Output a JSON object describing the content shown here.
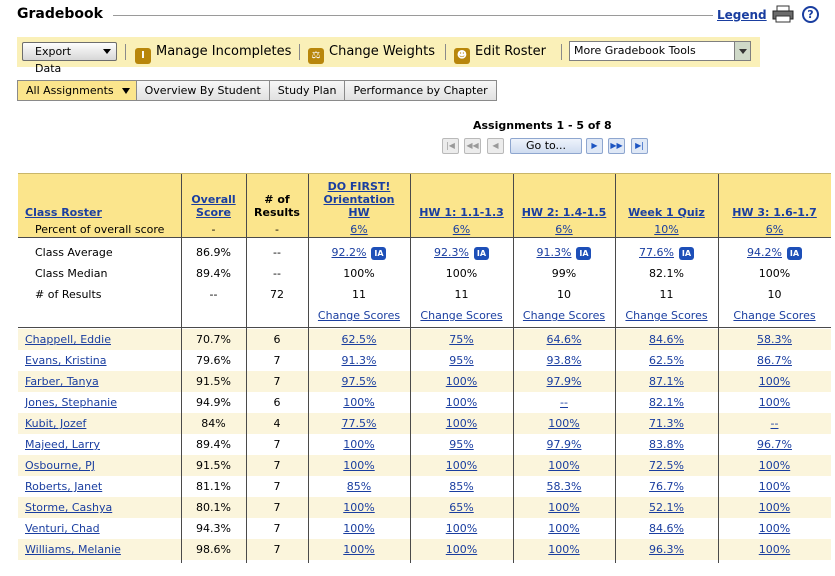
{
  "header": {
    "title": "Gradebook",
    "legend_label": "Legend",
    "help_label": "?"
  },
  "toolbar": {
    "export_label": "Export Data",
    "manage_incompletes": "Manage Incompletes",
    "change_weights": "Change Weights",
    "edit_roster": "Edit Roster",
    "more_tools": "More Gradebook Tools"
  },
  "tabs": [
    "All Assignments",
    "Overview By Student",
    "Study Plan",
    "Performance by Chapter"
  ],
  "pager": {
    "label": "Assignments 1 - 5 of 8",
    "goto_label": "Go to..."
  },
  "table": {
    "roster_header": "Class Roster",
    "percent_label": "Percent of overall score",
    "overall_header_1": "Overall",
    "overall_header_2": "Score",
    "results_header_1": "# of",
    "results_header_2": "Results",
    "dash": "-",
    "assignments": [
      {
        "name_lines": [
          "DO FIRST!",
          "Orientation",
          "HW"
        ],
        "weight": "6%"
      },
      {
        "name_lines": [
          "HW 1: 1.1-1.3"
        ],
        "weight": "6%"
      },
      {
        "name_lines": [
          "HW 2: 1.4-1.5"
        ],
        "weight": "6%"
      },
      {
        "name_lines": [
          "Week 1 Quiz"
        ],
        "weight": "10%"
      },
      {
        "name_lines": [
          "HW 3: 1.6-1.7"
        ],
        "weight": "6%"
      }
    ],
    "stats": [
      {
        "label": "Class Average",
        "overall": "86.9%",
        "results": "--",
        "values": [
          "92.2%",
          "92.3%",
          "91.3%",
          "77.6%",
          "94.2%"
        ],
        "ia": true,
        "link": true
      },
      {
        "label": "Class Median",
        "overall": "89.4%",
        "results": "--",
        "values": [
          "100%",
          "100%",
          "99%",
          "82.1%",
          "100%"
        ],
        "ia": false,
        "link": false
      },
      {
        "label": "# of Results",
        "overall": "--",
        "results": "72",
        "values": [
          "11",
          "11",
          "10",
          "11",
          "10"
        ],
        "ia": false,
        "link": false
      }
    ],
    "ia_label": "IA",
    "change_scores_label": "Change Scores",
    "students": [
      {
        "name": "Chappell, Eddie",
        "overall": "70.7%",
        "results": "6",
        "scores": [
          "62.5%",
          "75%",
          "64.6%",
          "84.6%",
          "58.3%"
        ]
      },
      {
        "name": "Evans, Kristina",
        "overall": "79.6%",
        "results": "7",
        "scores": [
          "91.3%",
          "95%",
          "93.8%",
          "62.5%",
          "86.7%"
        ]
      },
      {
        "name": "Farber, Tanya",
        "overall": "91.5%",
        "results": "7",
        "scores": [
          "97.5%",
          "100%",
          "97.9%",
          "87.1%",
          "100%"
        ]
      },
      {
        "name": "Jones, Stephanie",
        "overall": "94.9%",
        "results": "6",
        "scores": [
          "100%",
          "100%",
          "--",
          "82.1%",
          "100%"
        ]
      },
      {
        "name": "Kubit, Jozef",
        "overall": "84%",
        "results": "4",
        "scores": [
          "77.5%",
          "100%",
          "100%",
          "71.3%",
          "--"
        ]
      },
      {
        "name": "Majeed, Larry",
        "overall": "89.4%",
        "results": "7",
        "scores": [
          "100%",
          "95%",
          "97.9%",
          "83.8%",
          "96.7%"
        ]
      },
      {
        "name": "Osbourne, PJ",
        "overall": "91.5%",
        "results": "7",
        "scores": [
          "100%",
          "100%",
          "100%",
          "72.5%",
          "100%"
        ]
      },
      {
        "name": "Roberts, Janet",
        "overall": "81.1%",
        "results": "7",
        "scores": [
          "85%",
          "85%",
          "58.3%",
          "76.7%",
          "100%"
        ]
      },
      {
        "name": "Storme, Cashya",
        "overall": "80.1%",
        "results": "7",
        "scores": [
          "100%",
          "65%",
          "100%",
          "52.1%",
          "100%"
        ]
      },
      {
        "name": "Venturi, Chad",
        "overall": "94.3%",
        "results": "7",
        "scores": [
          "100%",
          "100%",
          "100%",
          "84.6%",
          "100%"
        ]
      },
      {
        "name": "Williams, Melanie",
        "overall": "98.6%",
        "results": "7",
        "scores": [
          "100%",
          "100%",
          "100%",
          "96.3%",
          "100%"
        ]
      }
    ]
  },
  "colors": {
    "header_bg": "#fbe58c",
    "stripe_bg": "#fbf5dc",
    "link": "#1a3ea0",
    "ia_badge": "#1d4fb8"
  }
}
